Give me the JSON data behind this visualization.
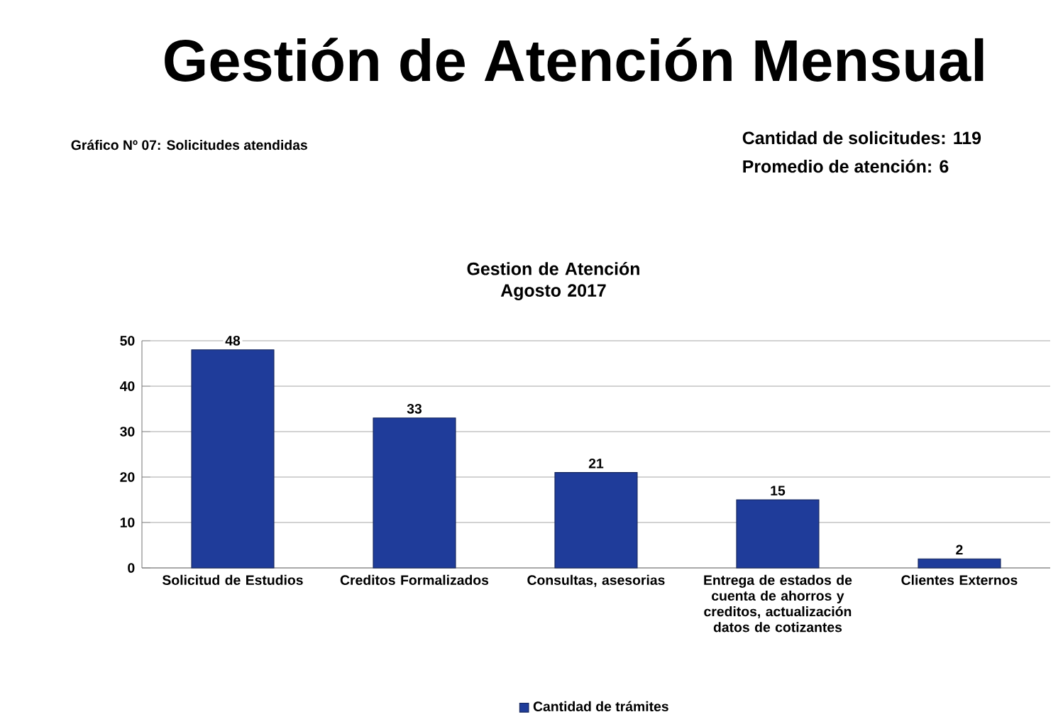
{
  "chart_data": {
    "type": "bar",
    "title": "Gestión de Atención Mensual",
    "subtitle": "Gestion de Atención Agosto 2017",
    "annotations": [
      "Gráfico Nº 07: Solicitudes atendidas",
      "Cantidad de solicitudes: 119",
      "Promedio de atención: 6"
    ],
    "categories": [
      "Solicitud de Estudios",
      "Creditos Formalizados",
      "Consultas, asesorias",
      "Entrega de estados de cuenta de ahorros y creditos, actualización datos de cotizantes",
      "Clientes Externos"
    ],
    "series": [
      {
        "name": "Cantidad de trámites",
        "color": "#1f3c9a",
        "values": [
          48,
          33,
          21,
          15,
          2
        ]
      }
    ],
    "ylim": [
      0,
      50
    ],
    "yticks": [
      0,
      10,
      20,
      30,
      40,
      50
    ],
    "grid": "y",
    "legend": "bottom",
    "data_labels": true
  }
}
